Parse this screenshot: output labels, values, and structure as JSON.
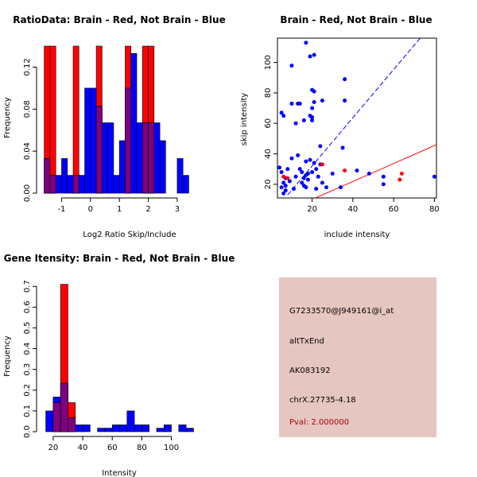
{
  "colors": {
    "red": "#ff0000",
    "blue": "#0000ff",
    "overlap": "#7f0080",
    "panel": "#e6c6c0",
    "pval": "#b00000"
  },
  "chart_data": [
    {
      "type": "bar",
      "title": "RatioData: Brain - Red, Not Brain - Blue",
      "xlabel": "Log2 Ratio Skip/Include",
      "ylabel": "Frequency",
      "xlim": [
        -1.7,
        3.8
      ],
      "ylim": [
        0,
        0.14
      ],
      "xticks": [
        -1,
        0,
        1,
        2,
        3
      ],
      "yticks": [
        0.0,
        0.04,
        0.08,
        0.12
      ],
      "bin_edges": [
        -1.6,
        -1.4,
        -1.2,
        -1.0,
        -0.8,
        -0.6,
        -0.4,
        -0.2,
        0.0,
        0.2,
        0.4,
        0.6,
        0.8,
        1.0,
        1.2,
        1.4,
        1.6,
        1.8,
        2.0,
        2.2,
        2.4,
        2.6,
        2.8,
        3.0,
        3.2,
        3.4,
        3.6
      ],
      "series": [
        {
          "name": "Brain",
          "color": "red",
          "values": [
            0.14,
            0.14,
            0,
            0,
            0,
            0.14,
            0,
            0,
            0,
            0.14,
            0,
            0,
            0,
            0,
            0.14,
            0,
            0,
            0.14,
            0.14,
            0,
            0,
            0,
            0,
            0,
            0,
            0
          ]
        },
        {
          "name": "Not Brain",
          "color": "blue",
          "values": [
            0.033,
            0.017,
            0.017,
            0.033,
            0.017,
            0.017,
            0.017,
            0.1,
            0.1,
            0.083,
            0.067,
            0.067,
            0.017,
            0.05,
            0.1,
            0.133,
            0.067,
            0.067,
            0.067,
            0.067,
            0.05,
            0,
            0,
            0.033,
            0.017,
            0
          ]
        }
      ]
    },
    {
      "type": "scatter",
      "title": "Brain - Red, Not Brain - Blue",
      "xlabel": "include intensity",
      "ylabel": "skip intensity",
      "xlim": [
        3,
        81
      ],
      "ylim": [
        11,
        116
      ],
      "xticks": [
        20,
        40,
        60,
        80
      ],
      "yticks": [
        20,
        40,
        60,
        80,
        100
      ],
      "series": [
        {
          "name": "Not Brain",
          "color": "blue",
          "points": [
            [
              4,
              31
            ],
            [
              5,
              18
            ],
            [
              5,
              28
            ],
            [
              6,
              14
            ],
            [
              6,
              21
            ],
            [
              7,
              16
            ],
            [
              7,
              19
            ],
            [
              5,
              67
            ],
            [
              6,
              65
            ],
            [
              7,
              24
            ],
            [
              8,
              30
            ],
            [
              9,
              22
            ],
            [
              10,
              37
            ],
            [
              10,
              73
            ],
            [
              10,
              98
            ],
            [
              11,
              17
            ],
            [
              12,
              25
            ],
            [
              12,
              60
            ],
            [
              13,
              39
            ],
            [
              13,
              73
            ],
            [
              14,
              30
            ],
            [
              14,
              73
            ],
            [
              15,
              21
            ],
            [
              15,
              28
            ],
            [
              16,
              19
            ],
            [
              16,
              24
            ],
            [
              16,
              62
            ],
            [
              17,
              18
            ],
            [
              17,
              26
            ],
            [
              17,
              35
            ],
            [
              17,
              113
            ],
            [
              18,
              23
            ],
            [
              18,
              27
            ],
            [
              19,
              36
            ],
            [
              19,
              65
            ],
            [
              19,
              104
            ],
            [
              20,
              28
            ],
            [
              20,
              82
            ],
            [
              20,
              70
            ],
            [
              20,
              64
            ],
            [
              20,
              62
            ],
            [
              21,
              74
            ],
            [
              21,
              81
            ],
            [
              21,
              34
            ],
            [
              21,
              105
            ],
            [
              22,
              17
            ],
            [
              22,
              30
            ],
            [
              23,
              25
            ],
            [
              24,
              33
            ],
            [
              24,
              45
            ],
            [
              25,
              21
            ],
            [
              25,
              75
            ],
            [
              27,
              18
            ],
            [
              30,
              27
            ],
            [
              34,
              18
            ],
            [
              35,
              44
            ],
            [
              36,
              75
            ],
            [
              36,
              89
            ],
            [
              42,
              29
            ],
            [
              48,
              27
            ],
            [
              55,
              25
            ],
            [
              55,
              20
            ],
            [
              80,
              25
            ]
          ]
        },
        {
          "name": "Brain",
          "color": "red",
          "points": [
            [
              6,
              25
            ],
            [
              8,
              24
            ],
            [
              25,
              33
            ],
            [
              36,
              29
            ],
            [
              63,
              23
            ],
            [
              64,
              27
            ]
          ]
        }
      ],
      "lines": [
        {
          "name": "Not Brain fit",
          "color": "blue",
          "dashed": true,
          "from": [
            8,
            13
          ],
          "to": [
            73,
            116
          ]
        },
        {
          "name": "Brain fit",
          "color": "red",
          "dashed": false,
          "from": [
            3,
            0
          ],
          "to": [
            81,
            46
          ]
        }
      ]
    },
    {
      "type": "bar",
      "title": "Gene Itensity: Brain - Red, Not Brain - Blue",
      "xlabel": "Intensity",
      "ylabel": "Frequency",
      "xlim": [
        12,
        118
      ],
      "ylim": [
        0,
        0.72
      ],
      "xticks": [
        20,
        40,
        60,
        80,
        100
      ],
      "yticks": [
        0.0,
        0.1,
        0.2,
        0.3,
        0.4,
        0.5,
        0.6,
        0.7
      ],
      "bin_edges": [
        15,
        20,
        25,
        30,
        35,
        40,
        45,
        50,
        55,
        60,
        65,
        70,
        75,
        80,
        85,
        90,
        95,
        100,
        105,
        110,
        115
      ],
      "series": [
        {
          "name": "Brain",
          "color": "red",
          "values": [
            0,
            0.14,
            0.71,
            0.14,
            0,
            0,
            0,
            0,
            0,
            0,
            0,
            0,
            0,
            0,
            0,
            0,
            0,
            0,
            0,
            0
          ]
        },
        {
          "name": "Not Brain",
          "color": "blue",
          "values": [
            0.1,
            0.167,
            0.233,
            0.067,
            0.033,
            0.033,
            0,
            0.017,
            0.017,
            0.033,
            0.033,
            0.1,
            0.033,
            0.033,
            0,
            0.017,
            0.033,
            0,
            0.033,
            0.017
          ]
        }
      ]
    }
  ],
  "info_panel": {
    "probe_id": "G7233570@J949161@i_at",
    "event_type": "altTxEnd",
    "accession": "AK083192",
    "location": "chrX.27735-4.18",
    "pval": "Pval: 2.000000"
  }
}
